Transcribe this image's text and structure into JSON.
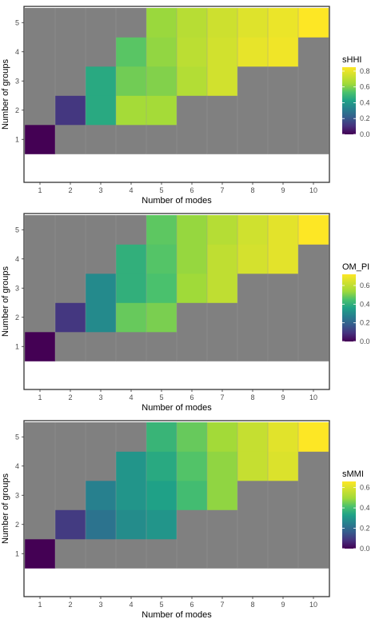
{
  "chart_data": [
    {
      "type": "heatmap",
      "xlabel": "Number of modes",
      "ylabel": "Number of groups",
      "x": [
        1,
        2,
        3,
        4,
        5,
        6,
        7,
        8,
        9,
        10
      ],
      "y": [
        1,
        2,
        3,
        4,
        5
      ],
      "legend": {
        "title": "sHHI",
        "ticks": [
          "0.0",
          "0.2",
          "0.4",
          "0.6",
          "0.8"
        ],
        "min": 0.0,
        "max": 0.85,
        "placement": "right"
      },
      "na_color": "#808080",
      "grid": true,
      "values": [
        [
          0.0,
          null,
          null,
          null,
          null,
          null,
          null,
          null,
          null,
          null
        ],
        [
          null,
          0.12,
          0.45,
          0.65,
          0.65,
          null,
          null,
          null,
          null,
          null
        ],
        [
          null,
          null,
          0.45,
          0.58,
          0.6,
          0.68,
          0.75,
          null,
          null,
          null
        ],
        [
          null,
          null,
          null,
          0.55,
          0.62,
          0.7,
          0.75,
          0.8,
          0.82,
          null
        ],
        [
          null,
          null,
          null,
          null,
          0.63,
          0.69,
          0.74,
          0.78,
          0.81,
          0.85
        ]
      ]
    },
    {
      "type": "heatmap",
      "xlabel": "Number of modes",
      "ylabel": "Number of groups",
      "x": [
        1,
        2,
        3,
        4,
        5,
        6,
        7,
        8,
        9,
        10
      ],
      "y": [
        1,
        2,
        3,
        4,
        5
      ],
      "legend": {
        "title": "OM_PI",
        "ticks": [
          "0.0",
          "0.2",
          "0.4",
          "0.6"
        ],
        "min": 0.0,
        "max": 0.72,
        "placement": "right"
      },
      "na_color": "#808080",
      "grid": true,
      "values": [
        [
          0.0,
          null,
          null,
          null,
          null,
          null,
          null,
          null,
          null,
          null
        ],
        [
          null,
          0.1,
          0.3,
          0.48,
          0.5,
          null,
          null,
          null,
          null,
          null
        ],
        [
          null,
          null,
          0.3,
          0.4,
          0.45,
          0.54,
          0.6,
          null,
          null,
          null
        ],
        [
          null,
          null,
          null,
          0.4,
          0.46,
          0.53,
          0.6,
          0.64,
          0.67,
          null
        ],
        [
          null,
          null,
          null,
          null,
          0.47,
          0.53,
          0.58,
          0.63,
          0.67,
          0.72
        ]
      ]
    },
    {
      "type": "heatmap",
      "xlabel": "Number of modes",
      "ylabel": "Number of groups",
      "x": [
        1,
        2,
        3,
        4,
        5,
        6,
        7,
        8,
        9,
        10
      ],
      "y": [
        1,
        2,
        3,
        4,
        5
      ],
      "legend": {
        "title": "sMMI",
        "ticks": [
          "0.0",
          "0.2",
          "0.4",
          "0.6"
        ],
        "min": 0.0,
        "max": 0.66,
        "placement": "right"
      },
      "na_color": "#808080",
      "grid": true,
      "values": [
        [
          0.0,
          null,
          null,
          null,
          null,
          null,
          null,
          null,
          null,
          null
        ],
        [
          null,
          0.1,
          0.22,
          0.28,
          0.3,
          null,
          null,
          null,
          null,
          null
        ],
        [
          null,
          null,
          0.25,
          0.3,
          0.33,
          0.4,
          0.48,
          null,
          null,
          null
        ],
        [
          null,
          null,
          null,
          0.3,
          0.35,
          0.42,
          0.48,
          0.56,
          0.6,
          null
        ],
        [
          null,
          null,
          null,
          null,
          0.38,
          0.44,
          0.5,
          0.56,
          0.61,
          0.66
        ]
      ]
    }
  ]
}
